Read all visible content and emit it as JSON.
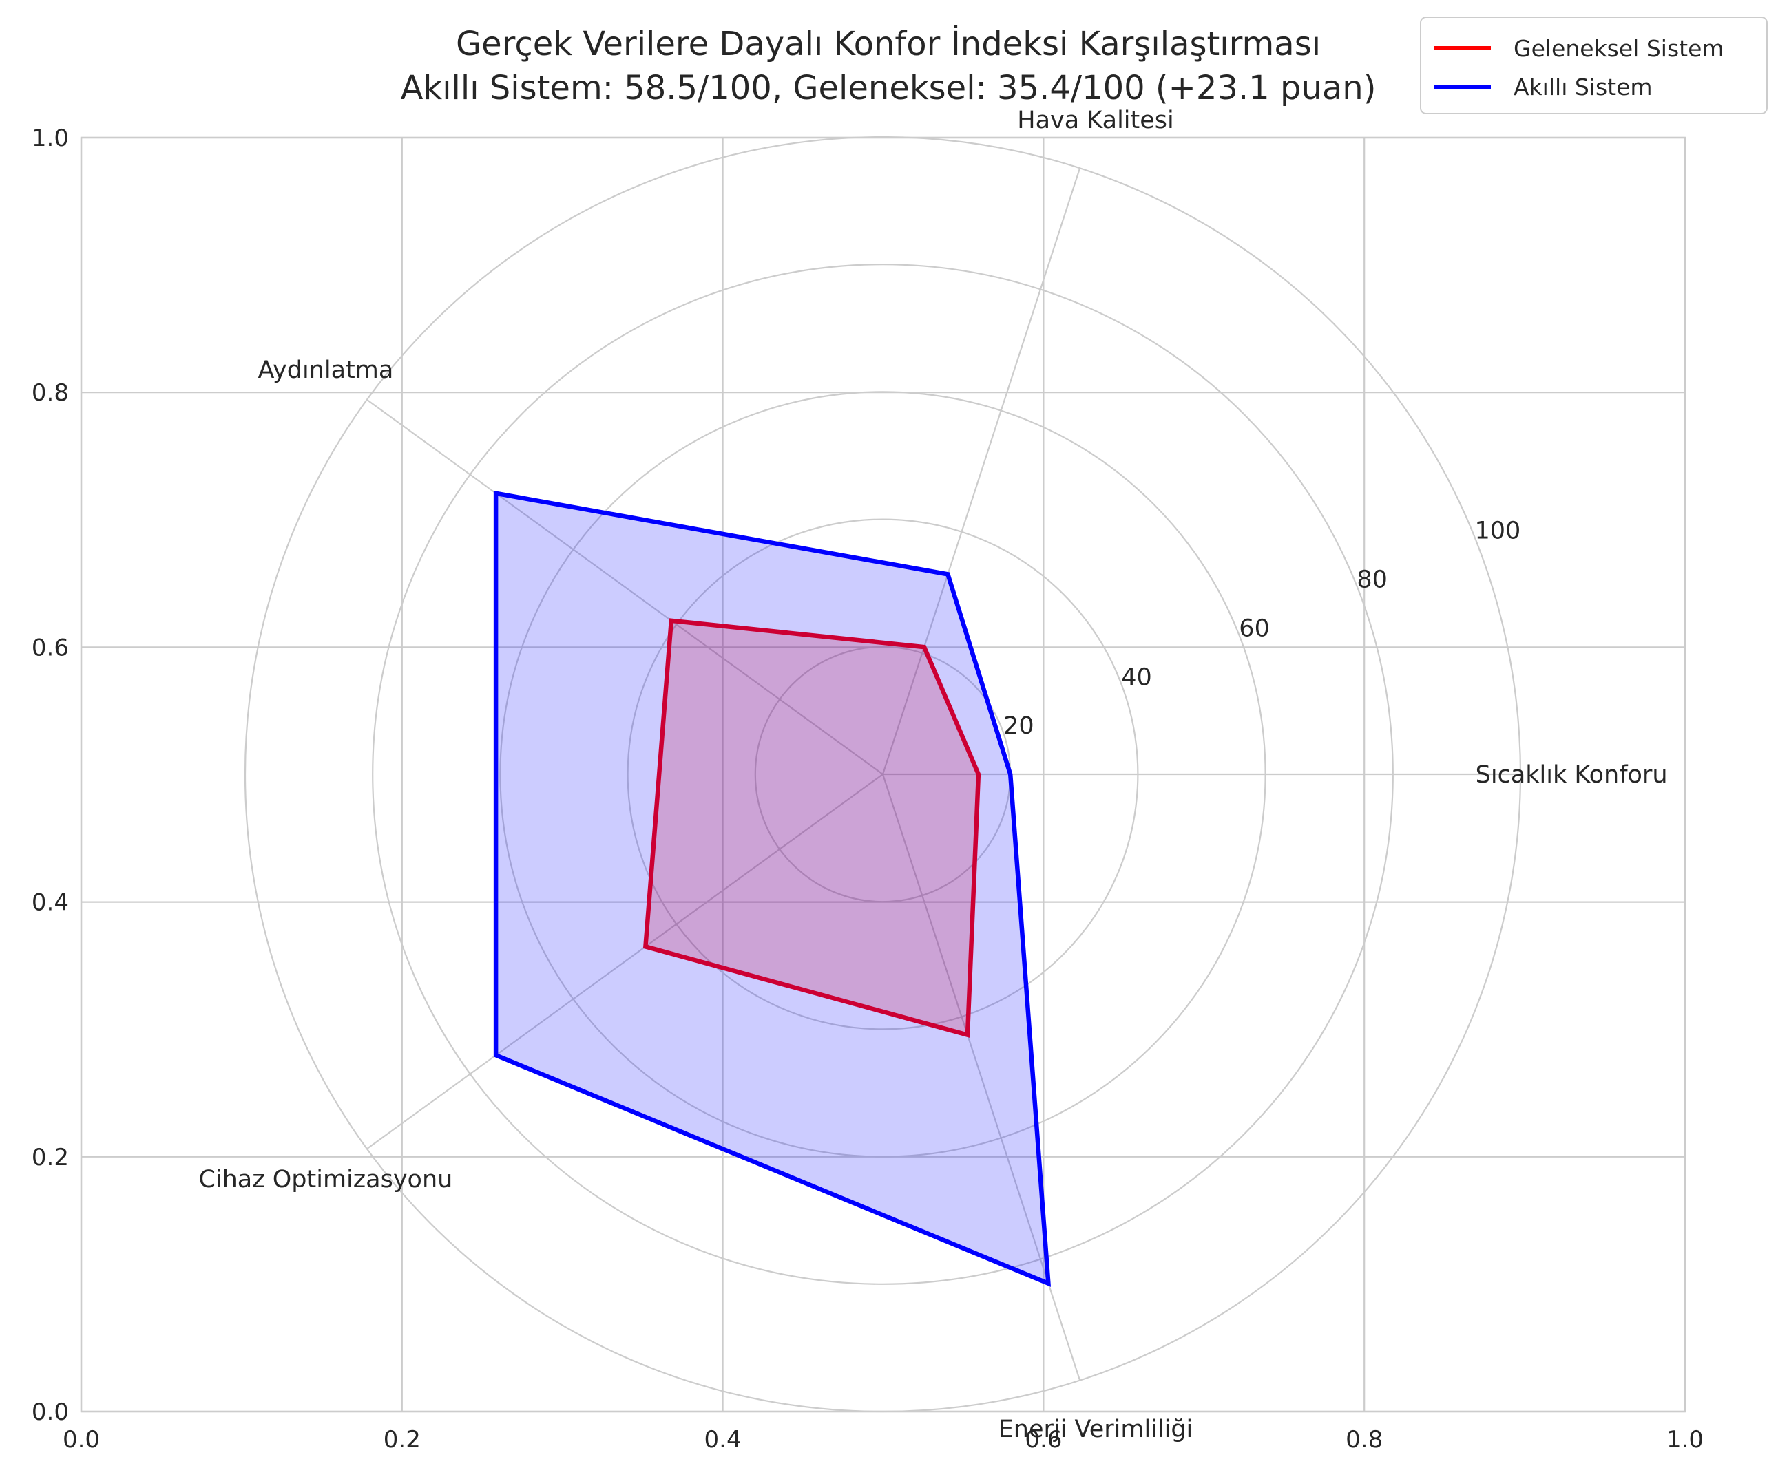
{
  "chart_data": {
    "type": "radar",
    "title_lines": [
      "Gerçek Verilere Dayalı Konfor İndeksi Karşılaştırması",
      "Akıllı Sistem: 58.5/100, Geleneksel: 35.4/100 (+23.1 puan)"
    ],
    "categories": [
      "Sıcaklık Konforu",
      "Hava Kalitesi",
      "Aydınlatma",
      "Cihaz Optimizasyonu",
      "Enerji Verimliliği"
    ],
    "radial_ticks": [
      20,
      40,
      60,
      80,
      100
    ],
    "rlim": [
      0,
      100
    ],
    "series": [
      {
        "name": "Geleneksel Sistem",
        "color": "#ff0000",
        "fill": "#ff0000",
        "values": [
          15,
          21,
          41,
          46,
          43
        ]
      },
      {
        "name": "Akıllı Sistem",
        "color": "#0000ff",
        "fill": "#0000ff",
        "values": [
          20,
          33,
          75,
          75,
          84
        ]
      }
    ],
    "background_axes": {
      "xlim": [
        0.0,
        1.0
      ],
      "ylim": [
        0.0,
        1.0
      ],
      "xticks": [
        "0.0",
        "0.2",
        "0.4",
        "0.6",
        "0.8",
        "1.0"
      ],
      "yticks": [
        "0.0",
        "0.2",
        "0.4",
        "0.6",
        "0.8",
        "1.0"
      ]
    },
    "grid": true,
    "legend_position": "top-right"
  }
}
